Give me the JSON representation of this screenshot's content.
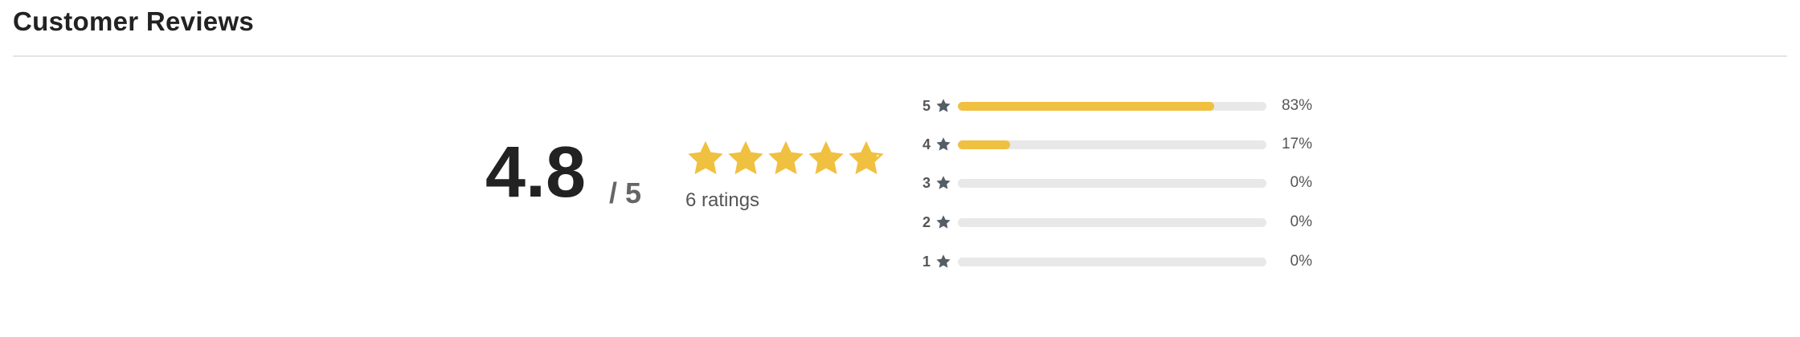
{
  "header": {
    "title": "Customer Reviews"
  },
  "summary": {
    "score": "4.8",
    "out_of": "/ 5",
    "rating_value": 4.8,
    "ratings_count": "6 ratings",
    "star_color": "#f0c040"
  },
  "breakdown": [
    {
      "stars": "5",
      "percent": "83%",
      "fraction": 0.83
    },
    {
      "stars": "4",
      "percent": "17%",
      "fraction": 0.17
    },
    {
      "stars": "3",
      "percent": "0%",
      "fraction": 0
    },
    {
      "stars": "2",
      "percent": "0%",
      "fraction": 0
    },
    {
      "stars": "1",
      "percent": "0%",
      "fraction": 0
    }
  ],
  "colors": {
    "bar_fill": "#f0c040",
    "bar_track": "#e8e8e8",
    "label_star": "#555e66"
  }
}
